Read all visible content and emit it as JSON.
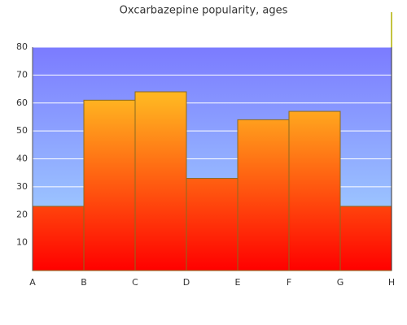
{
  "chart_data": {
    "type": "histogram",
    "title": "Oxcarbazepine popularity, ages",
    "bins": [
      "A",
      "B",
      "C",
      "D",
      "E",
      "F",
      "G",
      "H"
    ],
    "values": [
      23,
      61,
      64,
      33,
      54,
      57,
      23
    ],
    "ylim": [
      0,
      80
    ],
    "yticks": [
      10,
      20,
      30,
      40,
      50,
      60,
      70,
      80
    ],
    "grid": true
  }
}
